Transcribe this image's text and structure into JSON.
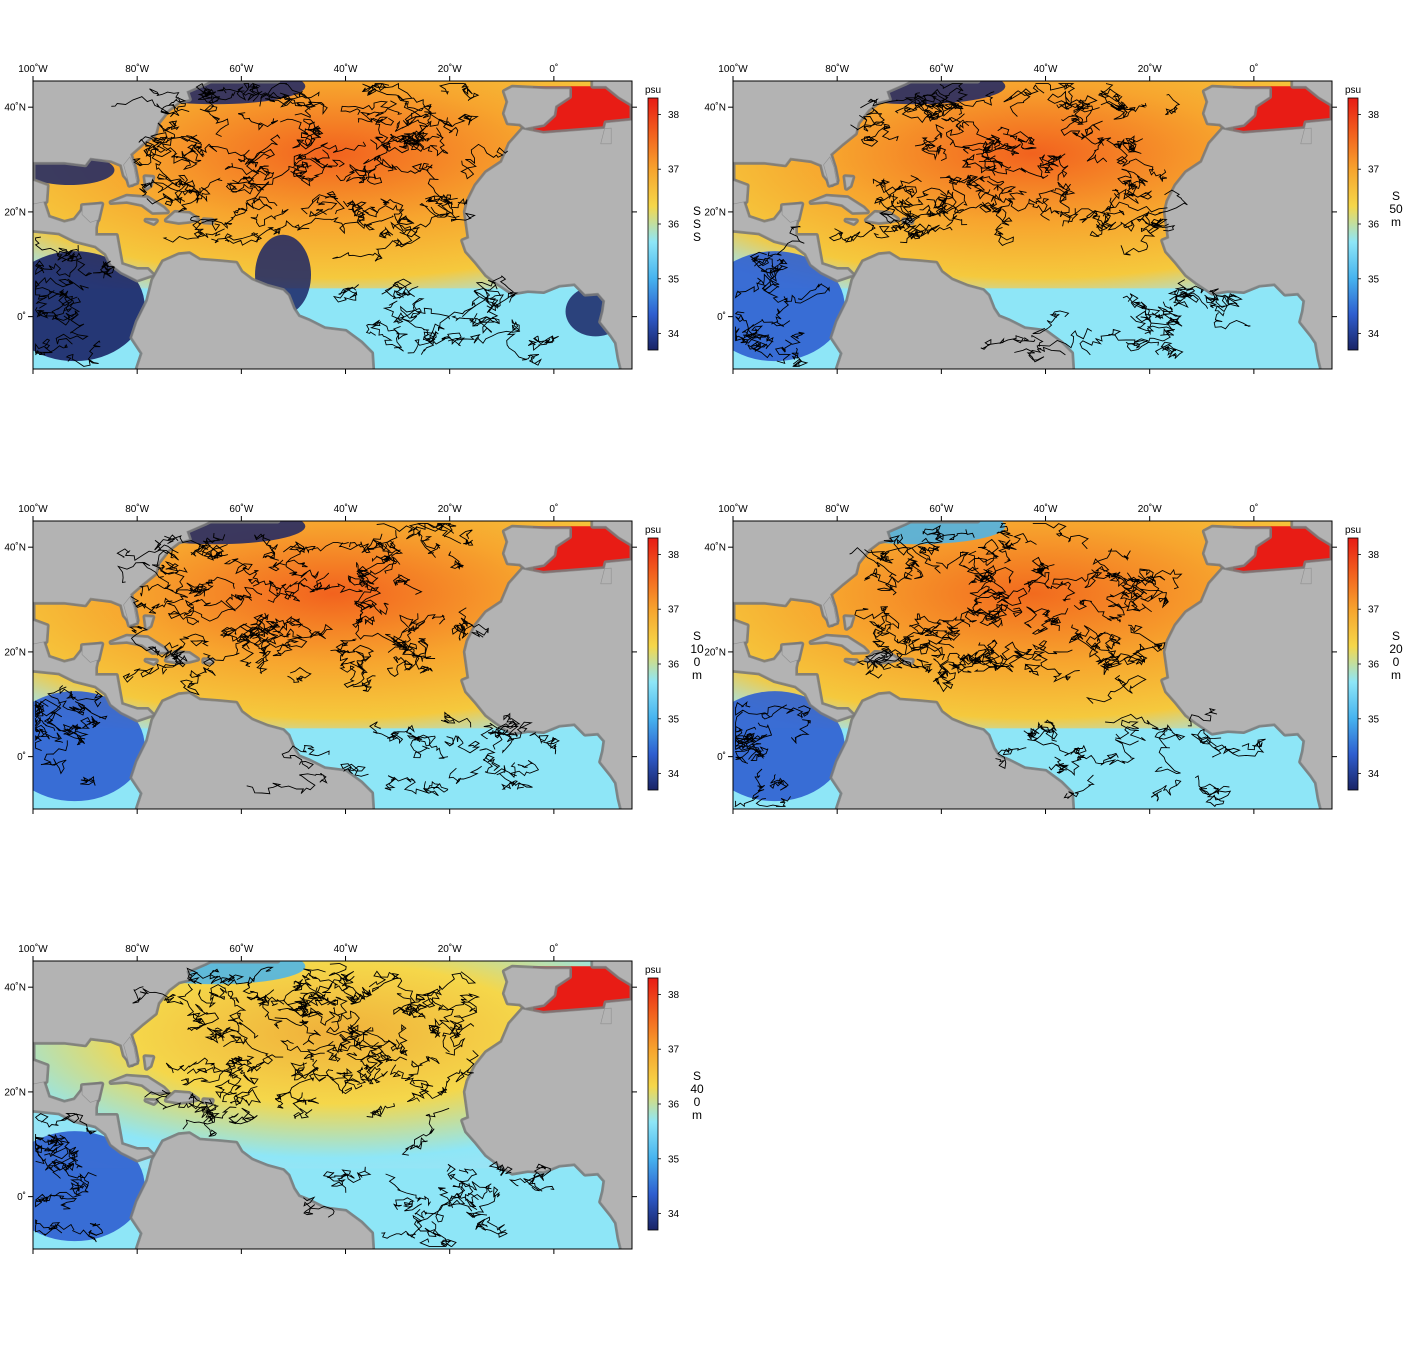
{
  "figure": {
    "lon_ticks": [
      "100˚W",
      "80˚W",
      "60˚W",
      "40˚W",
      "20˚W",
      "0˚"
    ],
    "lat_ticks": [
      "40˚N",
      "20˚N",
      "0˚"
    ],
    "colorbar": {
      "unit": "psu",
      "ticks": [
        "38",
        "37",
        "36",
        "35",
        "34"
      ],
      "range": [
        33.7,
        38.3
      ],
      "colors": [
        "#1a2466",
        "#2f5fd0",
        "#47b4ef",
        "#8ee6f7",
        "#f5d74a",
        "#f7a52e",
        "#f2621e",
        "#e81c15"
      ]
    },
    "colors": {
      "land": "#b3b3b3",
      "shelf": "#7a7a7a",
      "tracks": "#000000"
    },
    "extent": {
      "lon": [
        -100,
        15
      ],
      "lat": [
        -10,
        45
      ]
    }
  },
  "panels": [
    {
      "id": "sss",
      "label": "SSS",
      "ocean_gradient": [
        "#f5c93d",
        "#f7a52e",
        "#f2621e"
      ]
    },
    {
      "id": "s50",
      "label": "S 50 m",
      "ocean_gradient": [
        "#f5c93d",
        "#f7a52e",
        "#f2621e"
      ]
    },
    {
      "id": "s100",
      "label": "S 100 m",
      "ocean_gradient": [
        "#f5c93d",
        "#f7a52e",
        "#f2621e"
      ]
    },
    {
      "id": "s200",
      "label": "S 200 m",
      "ocean_gradient": [
        "#f5c93d",
        "#f7a52e",
        "#f26a1e"
      ]
    },
    {
      "id": "s400",
      "label": "S 400 m",
      "ocean_gradient": [
        "#8ee6f7",
        "#f5d74a",
        "#f0b03a"
      ]
    }
  ]
}
